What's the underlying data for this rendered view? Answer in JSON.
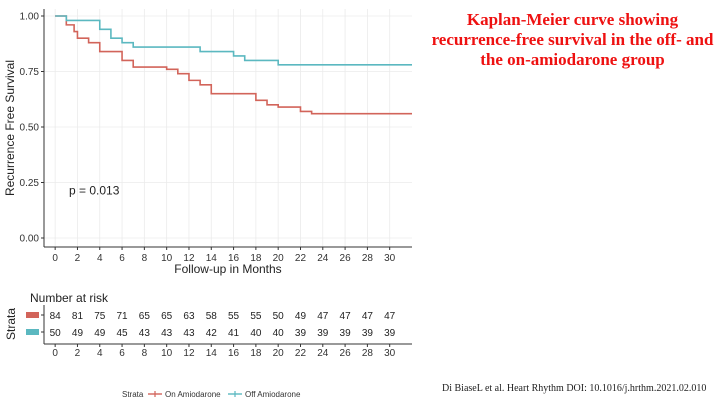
{
  "heading": "Kaplan-Meier curve showing recurrence-free survival in the off- and the on-amiodarone group",
  "citation": "Di BiaseL et al. Heart Rhythm DOI: 10.1016/j.hrthm.2021.02.010",
  "chart_data": {
    "type": "line",
    "xlabel": "Follow-up in Months",
    "ylabel": "Recurrence Free Survival",
    "xlim": [
      -1,
      32
    ],
    "ylim": [
      0,
      1
    ],
    "x_ticks": [
      0,
      2,
      4,
      6,
      8,
      10,
      12,
      14,
      16,
      18,
      20,
      22,
      24,
      26,
      28,
      30
    ],
    "x_tick_labels": [
      "0",
      "2",
      "4",
      "6",
      "8",
      "10",
      "12",
      "14",
      "16",
      "18",
      "20",
      "22",
      "24",
      "26",
      "28",
      "30"
    ],
    "y_ticks": [
      0,
      0.25,
      0.5,
      0.75,
      1.0
    ],
    "y_tick_labels": [
      "0.00",
      "0.25",
      "0.50",
      "0.75",
      "1.00"
    ],
    "grid": true,
    "annotation": "p = 0.013",
    "series": [
      {
        "name": "On Amiodarone",
        "color": "#d2645a",
        "steps": [
          [
            0,
            1.0
          ],
          [
            1,
            0.96
          ],
          [
            1.7,
            0.93
          ],
          [
            2,
            0.9
          ],
          [
            3,
            0.88
          ],
          [
            4,
            0.84
          ],
          [
            6,
            0.8
          ],
          [
            7,
            0.77
          ],
          [
            10,
            0.76
          ],
          [
            11,
            0.74
          ],
          [
            12,
            0.71
          ],
          [
            13,
            0.69
          ],
          [
            14,
            0.65
          ],
          [
            18,
            0.62
          ],
          [
            19,
            0.6
          ],
          [
            20,
            0.59
          ],
          [
            22,
            0.57
          ],
          [
            23,
            0.56
          ],
          [
            32,
            0.56
          ]
        ]
      },
      {
        "name": "Off Amiodarone",
        "color": "#5bb8c0",
        "steps": [
          [
            0,
            1.0
          ],
          [
            1,
            0.98
          ],
          [
            4,
            0.94
          ],
          [
            5,
            0.9
          ],
          [
            6,
            0.88
          ],
          [
            7,
            0.86
          ],
          [
            13,
            0.84
          ],
          [
            16,
            0.82
          ],
          [
            17,
            0.8
          ],
          [
            20,
            0.78
          ],
          [
            32,
            0.78
          ]
        ]
      }
    ],
    "risk_table": {
      "title": "Number at risk",
      "strata_label": "Strata",
      "rows": [
        {
          "name": "On Amiodarone",
          "color": "#d2645a",
          "values": [
            84,
            81,
            75,
            71,
            65,
            65,
            63,
            58,
            55,
            55,
            50,
            49,
            47,
            47,
            47,
            47
          ]
        },
        {
          "name": "Off Amiodarone",
          "color": "#5bb8c0",
          "values": [
            50,
            49,
            49,
            45,
            43,
            43,
            43,
            42,
            41,
            40,
            40,
            39,
            39,
            39,
            39,
            39
          ]
        }
      ],
      "x_ticks": [
        0,
        2,
        4,
        6,
        8,
        10,
        12,
        14,
        16,
        18,
        20,
        22,
        24,
        26,
        28,
        30
      ],
      "x_tick_labels": [
        "0",
        "2",
        "4",
        "6",
        "8",
        "10",
        "12",
        "14",
        "16",
        "18",
        "20",
        "22",
        "24",
        "26",
        "28",
        "30"
      ]
    },
    "legend": {
      "title": "Strata",
      "position": "bottom",
      "items": [
        {
          "label": "On Amiodarone",
          "color": "#d2645a"
        },
        {
          "label": "Off Amiodarone",
          "color": "#5bb8c0"
        }
      ]
    }
  }
}
